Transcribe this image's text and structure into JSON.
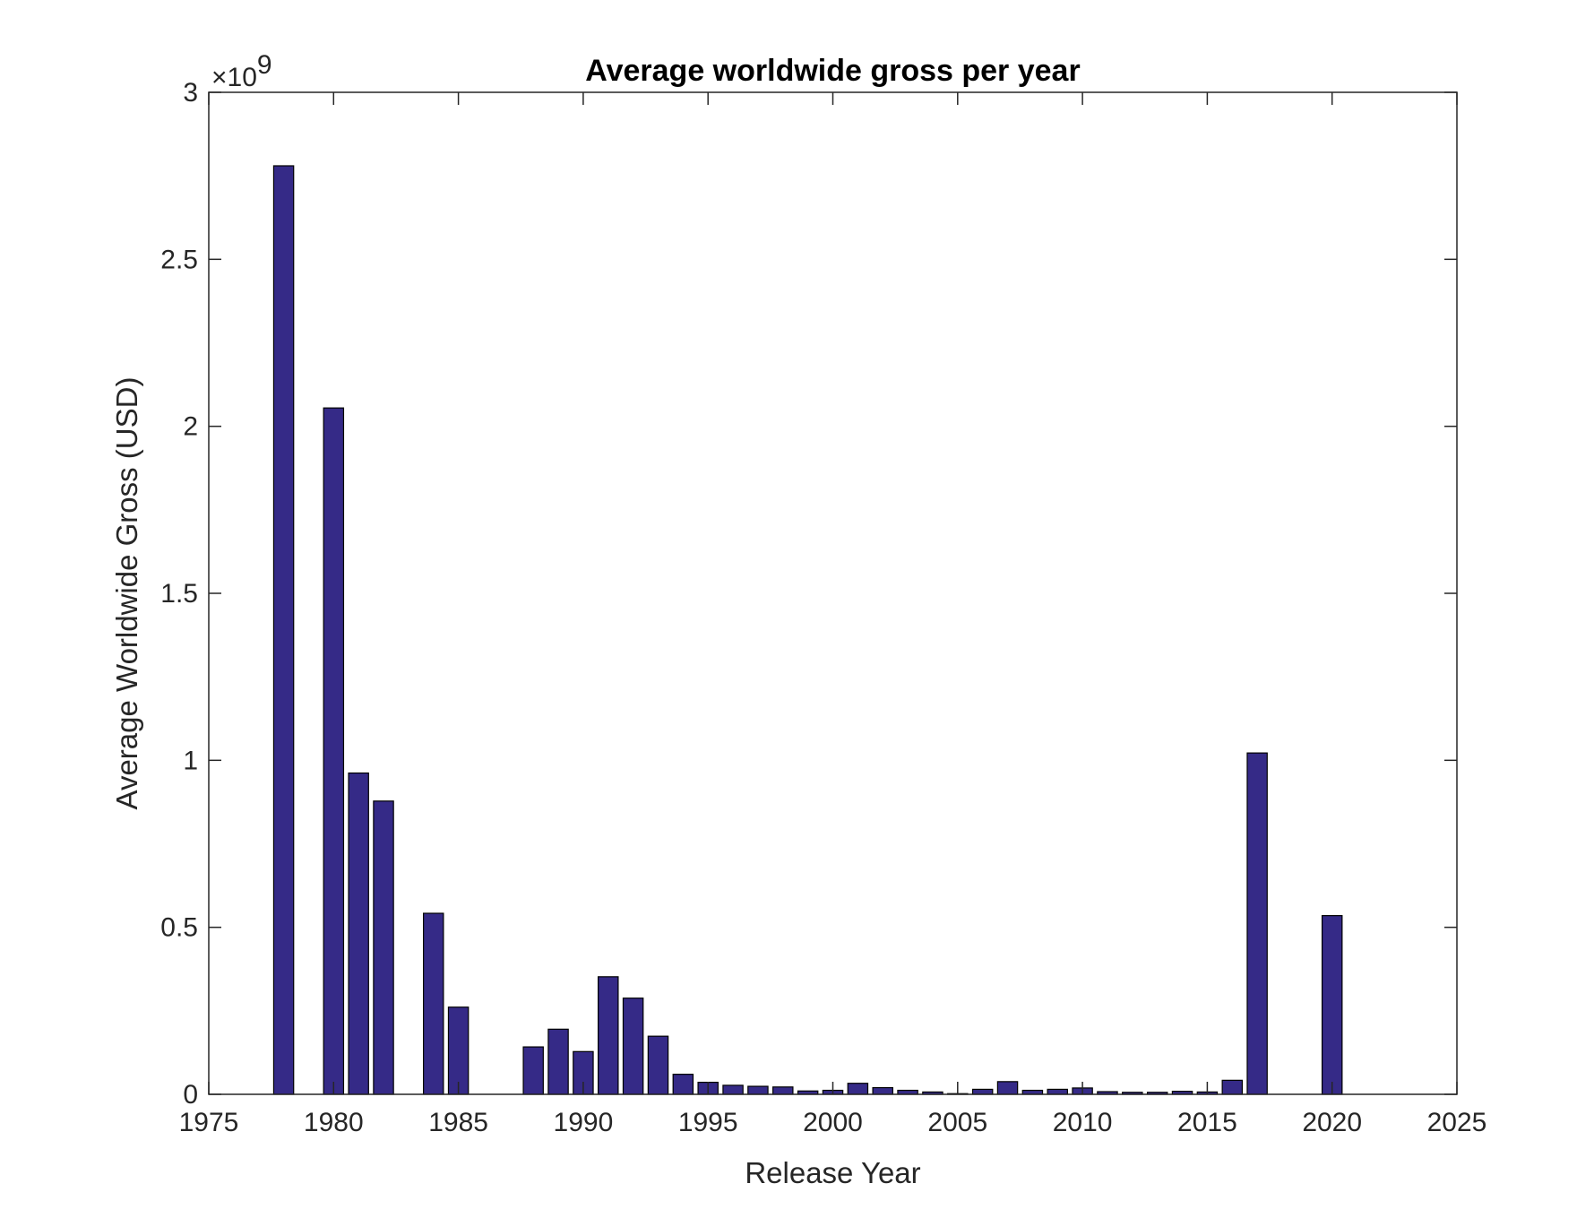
{
  "chart_data": {
    "type": "bar",
    "title": "Average worldwide gross per year",
    "xlabel": "Release Year",
    "ylabel": "Average Worldwide Gross (USD)",
    "y_exponent_base": "10",
    "y_exponent_power": "9",
    "xlim": [
      1975,
      2025
    ],
    "ylim": [
      0,
      3000000000.0
    ],
    "x_ticks": [
      1975,
      1980,
      1985,
      1990,
      1995,
      2000,
      2005,
      2010,
      2015,
      2020,
      2025
    ],
    "y_ticks": [
      0,
      0.5,
      1,
      1.5,
      2,
      2.5,
      3
    ],
    "y_tick_labels": [
      "0",
      "0.5",
      "1",
      "1.5",
      "2",
      "2.5",
      "3"
    ],
    "grid": false,
    "box": true,
    "bar_color": "#352a87",
    "data": [
      {
        "x": 1978,
        "y": 2780000000
      },
      {
        "x": 1980,
        "y": 2055000000
      },
      {
        "x": 1981,
        "y": 962000000
      },
      {
        "x": 1982,
        "y": 878000000
      },
      {
        "x": 1984,
        "y": 542000000
      },
      {
        "x": 1985,
        "y": 261000000
      },
      {
        "x": 1988,
        "y": 142000000
      },
      {
        "x": 1989,
        "y": 195000000
      },
      {
        "x": 1990,
        "y": 128000000
      },
      {
        "x": 1991,
        "y": 352000000
      },
      {
        "x": 1992,
        "y": 288000000
      },
      {
        "x": 1993,
        "y": 174000000
      },
      {
        "x": 1994,
        "y": 60000000
      },
      {
        "x": 1995,
        "y": 36000000
      },
      {
        "x": 1996,
        "y": 27000000
      },
      {
        "x": 1997,
        "y": 24000000
      },
      {
        "x": 1998,
        "y": 22000000
      },
      {
        "x": 1999,
        "y": 10000000
      },
      {
        "x": 2000,
        "y": 12000000
      },
      {
        "x": 2001,
        "y": 33000000
      },
      {
        "x": 2002,
        "y": 20000000
      },
      {
        "x": 2003,
        "y": 12000000
      },
      {
        "x": 2004,
        "y": 7000000
      },
      {
        "x": 2005,
        "y": 2000000
      },
      {
        "x": 2006,
        "y": 15000000
      },
      {
        "x": 2007,
        "y": 38000000
      },
      {
        "x": 2008,
        "y": 12000000
      },
      {
        "x": 2009,
        "y": 15000000
      },
      {
        "x": 2010,
        "y": 19000000
      },
      {
        "x": 2011,
        "y": 8000000
      },
      {
        "x": 2012,
        "y": 6000000
      },
      {
        "x": 2013,
        "y": 6000000
      },
      {
        "x": 2014,
        "y": 9000000
      },
      {
        "x": 2015,
        "y": 7000000
      },
      {
        "x": 2016,
        "y": 42000000
      },
      {
        "x": 2017,
        "y": 1022000000
      },
      {
        "x": 2020,
        "y": 535000000
      }
    ]
  }
}
